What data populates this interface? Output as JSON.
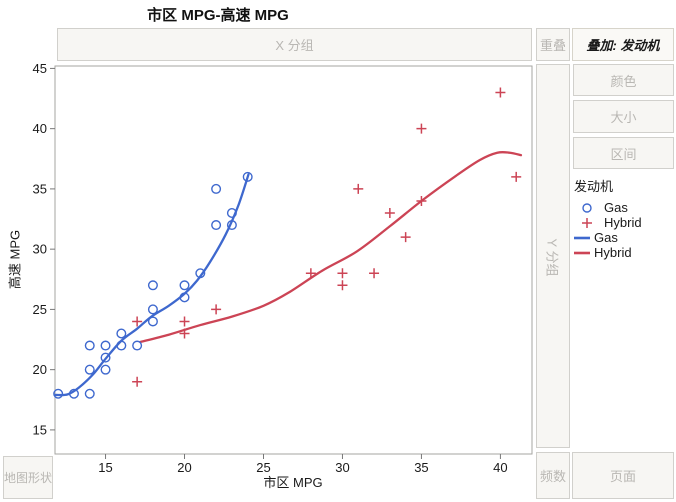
{
  "window": {
    "title": "市区 MPG-高速 MPG"
  },
  "drop_zones": {
    "x_group": "X 分组",
    "overlap": "重叠",
    "overlay": "叠加: 发动机",
    "color": "颜色",
    "size": "大小",
    "interval": "区间",
    "y_group": "Y 分组",
    "frequency": "频数",
    "page": "页面",
    "map_shape": "地图形状"
  },
  "legend": {
    "title": "发动机",
    "items": [
      {
        "label": "Gas",
        "marker": "circle",
        "color": "#3E68CE"
      },
      {
        "label": "Hybrid",
        "marker": "plus",
        "color": "#CC4455"
      },
      {
        "label": "Gas",
        "marker": "line",
        "color": "#3E68CE"
      },
      {
        "label": "Hybrid",
        "marker": "line",
        "color": "#CC4455"
      }
    ]
  },
  "colors": {
    "gas": "#3E68CE",
    "hybrid": "#CC4455",
    "plot_border": "#a6a5a2",
    "tick": "#777777",
    "tick_label": "#1a1a1a"
  },
  "chart_data": {
    "type": "scatter",
    "title": "市区 MPG-高速 MPG",
    "xlabel": "市区 MPG",
    "ylabel": "高速 MPG",
    "xlim": [
      11.8,
      42.0
    ],
    "ylim": [
      13.0,
      45.2
    ],
    "x_ticks": [
      15,
      20,
      25,
      30,
      35,
      40
    ],
    "y_ticks": [
      15,
      20,
      25,
      30,
      35,
      40,
      45
    ],
    "grid": false,
    "legend_position": "right",
    "series": [
      {
        "name": "Gas",
        "marker": "circle",
        "color": "#3E68CE",
        "points": [
          [
            12,
            18
          ],
          [
            13,
            18
          ],
          [
            14,
            18
          ],
          [
            14,
            20
          ],
          [
            15,
            20
          ],
          [
            15,
            21
          ],
          [
            14,
            22
          ],
          [
            15,
            22
          ],
          [
            16,
            22
          ],
          [
            17,
            22
          ],
          [
            16,
            23
          ],
          [
            18,
            24
          ],
          [
            18,
            25
          ],
          [
            18,
            27
          ],
          [
            20,
            26
          ],
          [
            20,
            27
          ],
          [
            21,
            28
          ],
          [
            22,
            32
          ],
          [
            23,
            32
          ],
          [
            23,
            33
          ],
          [
            22,
            35
          ],
          [
            24,
            36
          ]
        ]
      },
      {
        "name": "Hybrid",
        "marker": "plus",
        "color": "#CC4455",
        "points": [
          [
            17,
            19
          ],
          [
            17,
            24
          ],
          [
            20,
            23
          ],
          [
            20,
            24
          ],
          [
            22,
            25
          ],
          [
            28,
            28
          ],
          [
            30,
            27
          ],
          [
            30,
            28
          ],
          [
            31,
            35
          ],
          [
            32,
            28
          ],
          [
            33,
            33
          ],
          [
            34,
            31
          ],
          [
            35,
            34
          ],
          [
            35,
            40
          ],
          [
            40,
            43
          ],
          [
            41,
            36
          ]
        ]
      }
    ],
    "smoothers": [
      {
        "name": "Gas",
        "color": "#3E68CE",
        "path": [
          [
            11.85,
            17.9
          ],
          [
            12.6,
            17.95
          ],
          [
            13.3,
            18.5
          ],
          [
            14.2,
            19.6
          ],
          [
            15,
            20.9
          ],
          [
            16,
            22.4
          ],
          [
            17,
            23.4
          ],
          [
            17.9,
            24.4
          ],
          [
            19,
            25.3
          ],
          [
            20,
            26.3
          ],
          [
            20.8,
            27.4
          ],
          [
            21.6,
            28.9
          ],
          [
            22.6,
            31.2
          ],
          [
            23.4,
            33.6
          ],
          [
            24.05,
            36.2
          ]
        ]
      },
      {
        "name": "Hybrid",
        "color": "#CC4455",
        "path": [
          [
            17.2,
            22.3
          ],
          [
            19,
            22.9
          ],
          [
            21,
            23.7
          ],
          [
            23,
            24.4
          ],
          [
            25,
            25.3
          ],
          [
            26.6,
            26.4
          ],
          [
            28.7,
            28.2
          ],
          [
            30.9,
            29.8
          ],
          [
            33,
            31.9
          ],
          [
            35.1,
            34.1
          ],
          [
            37.2,
            36.1
          ],
          [
            38.7,
            37.4
          ],
          [
            39.8,
            38.0
          ],
          [
            40.6,
            38.0
          ],
          [
            41.3,
            37.8
          ]
        ]
      }
    ]
  }
}
